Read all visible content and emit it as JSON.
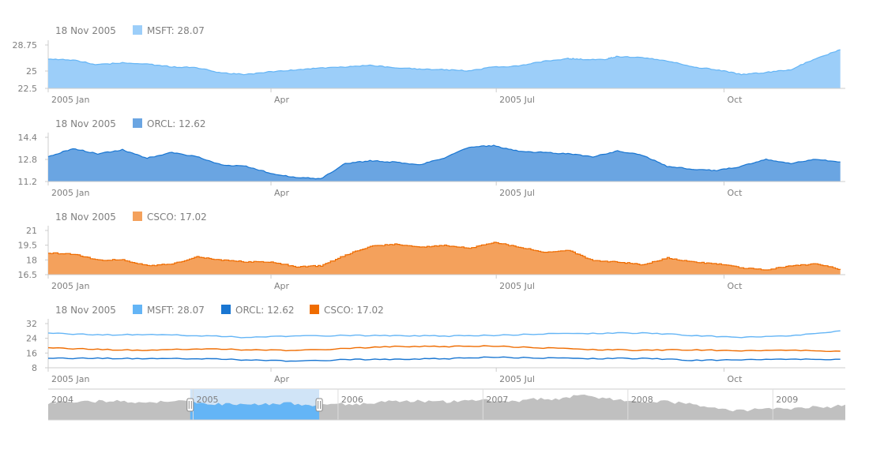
{
  "legend_date": "18 Nov 2005",
  "x_axis_labels": [
    "2005 Jan",
    "Apr",
    "2005 Jul",
    "Oct"
  ],
  "chart_data": [
    {
      "type": "area",
      "id": "msft",
      "title": "",
      "legend": [
        {
          "label": "MSFT: 28.07",
          "color": "#9ccef9"
        }
      ],
      "ylim": [
        22.5,
        28.75
      ],
      "y_ticks": [
        "28.75",
        "25",
        "22.5"
      ],
      "y_tick_values": [
        28.75,
        25,
        22.5
      ],
      "series": [
        {
          "name": "MSFT",
          "fill": "#9ccef9",
          "stroke": "#64b5f6",
          "x_days": [
            0,
            10,
            20,
            30,
            40,
            50,
            60,
            70,
            80,
            90,
            100,
            110,
            120,
            130,
            140,
            150,
            160,
            170,
            180,
            190,
            200,
            210,
            215,
            225,
            230,
            240,
            250,
            260,
            270,
            280,
            290,
            300,
            310,
            320
          ],
          "values": [
            26.7,
            26.6,
            25.9,
            26.2,
            26.0,
            25.6,
            25.5,
            24.7,
            24.5,
            24.9,
            25.2,
            25.4,
            25.6,
            25.8,
            25.5,
            25.3,
            25.2,
            25.0,
            25.6,
            25.7,
            26.4,
            26.8,
            26.7,
            26.7,
            27.1,
            26.9,
            26.5,
            25.6,
            25.2,
            24.5,
            24.8,
            25.2,
            26.8,
            28.07
          ]
        }
      ]
    },
    {
      "type": "area",
      "id": "orcl",
      "title": "",
      "legend": [
        {
          "label": "ORCL: 12.62",
          "color": "#6aa5e2"
        }
      ],
      "ylim": [
        11.2,
        14.4
      ],
      "y_ticks": [
        "14.4",
        "12.8",
        "11.2"
      ],
      "y_tick_values": [
        14.4,
        12.8,
        11.2
      ],
      "series": [
        {
          "name": "ORCL",
          "fill": "#6aa5e2",
          "stroke": "#1976d2",
          "x_days": [
            0,
            10,
            20,
            30,
            40,
            50,
            60,
            70,
            80,
            90,
            100,
            110,
            120,
            130,
            140,
            150,
            160,
            170,
            180,
            190,
            200,
            210,
            220,
            230,
            240,
            250,
            260,
            270,
            280,
            290,
            300,
            310,
            320
          ],
          "values": [
            13.0,
            13.6,
            13.2,
            13.5,
            12.9,
            13.3,
            13.0,
            12.4,
            12.3,
            11.8,
            11.5,
            11.4,
            12.5,
            12.7,
            12.6,
            12.4,
            12.9,
            13.7,
            13.8,
            13.4,
            13.3,
            13.2,
            13.0,
            13.4,
            13.1,
            12.3,
            12.1,
            12.0,
            12.3,
            12.8,
            12.5,
            12.8,
            12.62
          ]
        }
      ]
    },
    {
      "type": "area",
      "id": "csco",
      "title": "",
      "legend": [
        {
          "label": "CSCO: 17.02",
          "color": "#f4a15c"
        }
      ],
      "ylim": [
        16.5,
        21
      ],
      "y_ticks": [
        "21",
        "19.5",
        "18",
        "16.5"
      ],
      "y_tick_values": [
        21,
        19.5,
        18,
        16.5
      ],
      "series": [
        {
          "name": "CSCO",
          "fill": "#f4a15c",
          "stroke": "#ef6c00",
          "x_days": [
            0,
            10,
            20,
            30,
            40,
            50,
            60,
            70,
            80,
            90,
            100,
            110,
            120,
            130,
            140,
            150,
            160,
            170,
            180,
            190,
            200,
            210,
            220,
            230,
            240,
            250,
            260,
            270,
            280,
            290,
            300,
            310,
            320
          ],
          "values": [
            18.7,
            18.6,
            18.0,
            18.0,
            17.4,
            17.6,
            18.3,
            18.0,
            17.8,
            17.8,
            17.3,
            17.4,
            18.5,
            19.4,
            19.6,
            19.3,
            19.5,
            19.2,
            19.8,
            19.3,
            18.8,
            19.0,
            17.9,
            17.8,
            17.5,
            18.2,
            17.8,
            17.6,
            17.2,
            17.0,
            17.4,
            17.6,
            17.02
          ]
        }
      ]
    },
    {
      "type": "line",
      "id": "combined",
      "title": "",
      "legend": [
        {
          "label": "MSFT: 28.07",
          "color": "#64b5f6"
        },
        {
          "label": "ORCL: 12.62",
          "color": "#1976d2"
        },
        {
          "label": "CSCO: 17.02",
          "color": "#ef6c00"
        }
      ],
      "ylim": [
        8,
        32
      ],
      "y_ticks": [
        "32",
        "24",
        "16",
        "8"
      ],
      "y_tick_values": [
        32,
        24,
        16,
        8
      ],
      "series": [
        {
          "name": "MSFT",
          "stroke": "#64b5f6",
          "x_days": [
            0,
            20,
            40,
            60,
            80,
            100,
            120,
            140,
            160,
            180,
            200,
            220,
            240,
            260,
            280,
            300,
            320
          ],
          "values": [
            26.7,
            25.9,
            26.0,
            25.5,
            24.5,
            25.2,
            25.6,
            25.5,
            25.2,
            25.6,
            26.4,
            26.7,
            26.9,
            25.6,
            24.5,
            25.2,
            28.07
          ]
        },
        {
          "name": "CSCO",
          "stroke": "#ef6c00",
          "x_days": [
            0,
            20,
            40,
            60,
            80,
            100,
            120,
            140,
            160,
            180,
            200,
            220,
            240,
            260,
            280,
            300,
            320
          ],
          "values": [
            18.7,
            18.0,
            17.4,
            18.3,
            17.8,
            17.3,
            18.5,
            19.6,
            19.5,
            19.8,
            18.8,
            17.9,
            17.5,
            17.8,
            17.2,
            17.4,
            17.02
          ]
        },
        {
          "name": "ORCL",
          "stroke": "#1976d2",
          "x_days": [
            0,
            20,
            40,
            60,
            80,
            100,
            120,
            140,
            160,
            180,
            200,
            220,
            240,
            260,
            280,
            300,
            320
          ],
          "values": [
            13.0,
            13.2,
            12.9,
            13.0,
            12.3,
            11.5,
            12.5,
            12.6,
            12.9,
            13.8,
            13.3,
            13.0,
            13.1,
            12.1,
            12.3,
            12.5,
            12.62
          ]
        }
      ]
    }
  ],
  "scroller": {
    "year_labels": [
      "2004",
      "2005",
      "2006",
      "2007",
      "2008",
      "2009"
    ],
    "year_range": [
      2004,
      2009.5
    ],
    "selection": [
      2004.98,
      2005.87
    ],
    "fill_color": "#c0c0c0",
    "selected_fill_color": "#64b5f6",
    "selection_bg": "#d0e4f7",
    "profile": [
      0.55,
      0.58,
      0.6,
      0.57,
      0.62,
      0.6,
      0.58,
      0.55,
      0.6,
      0.62,
      0.58,
      0.55,
      0.52,
      0.5,
      0.48,
      0.5,
      0.52,
      0.55,
      0.5,
      0.45,
      0.48,
      0.52,
      0.5,
      0.55,
      0.6,
      0.58,
      0.62,
      0.6,
      0.58,
      0.6,
      0.62,
      0.65,
      0.6,
      0.58,
      0.62,
      0.68,
      0.65,
      0.7,
      0.85,
      0.75,
      0.7,
      0.65,
      0.6,
      0.58,
      0.62,
      0.55,
      0.5,
      0.45,
      0.4,
      0.3,
      0.32,
      0.35,
      0.38,
      0.35,
      0.4,
      0.45,
      0.42,
      0.5
    ]
  }
}
